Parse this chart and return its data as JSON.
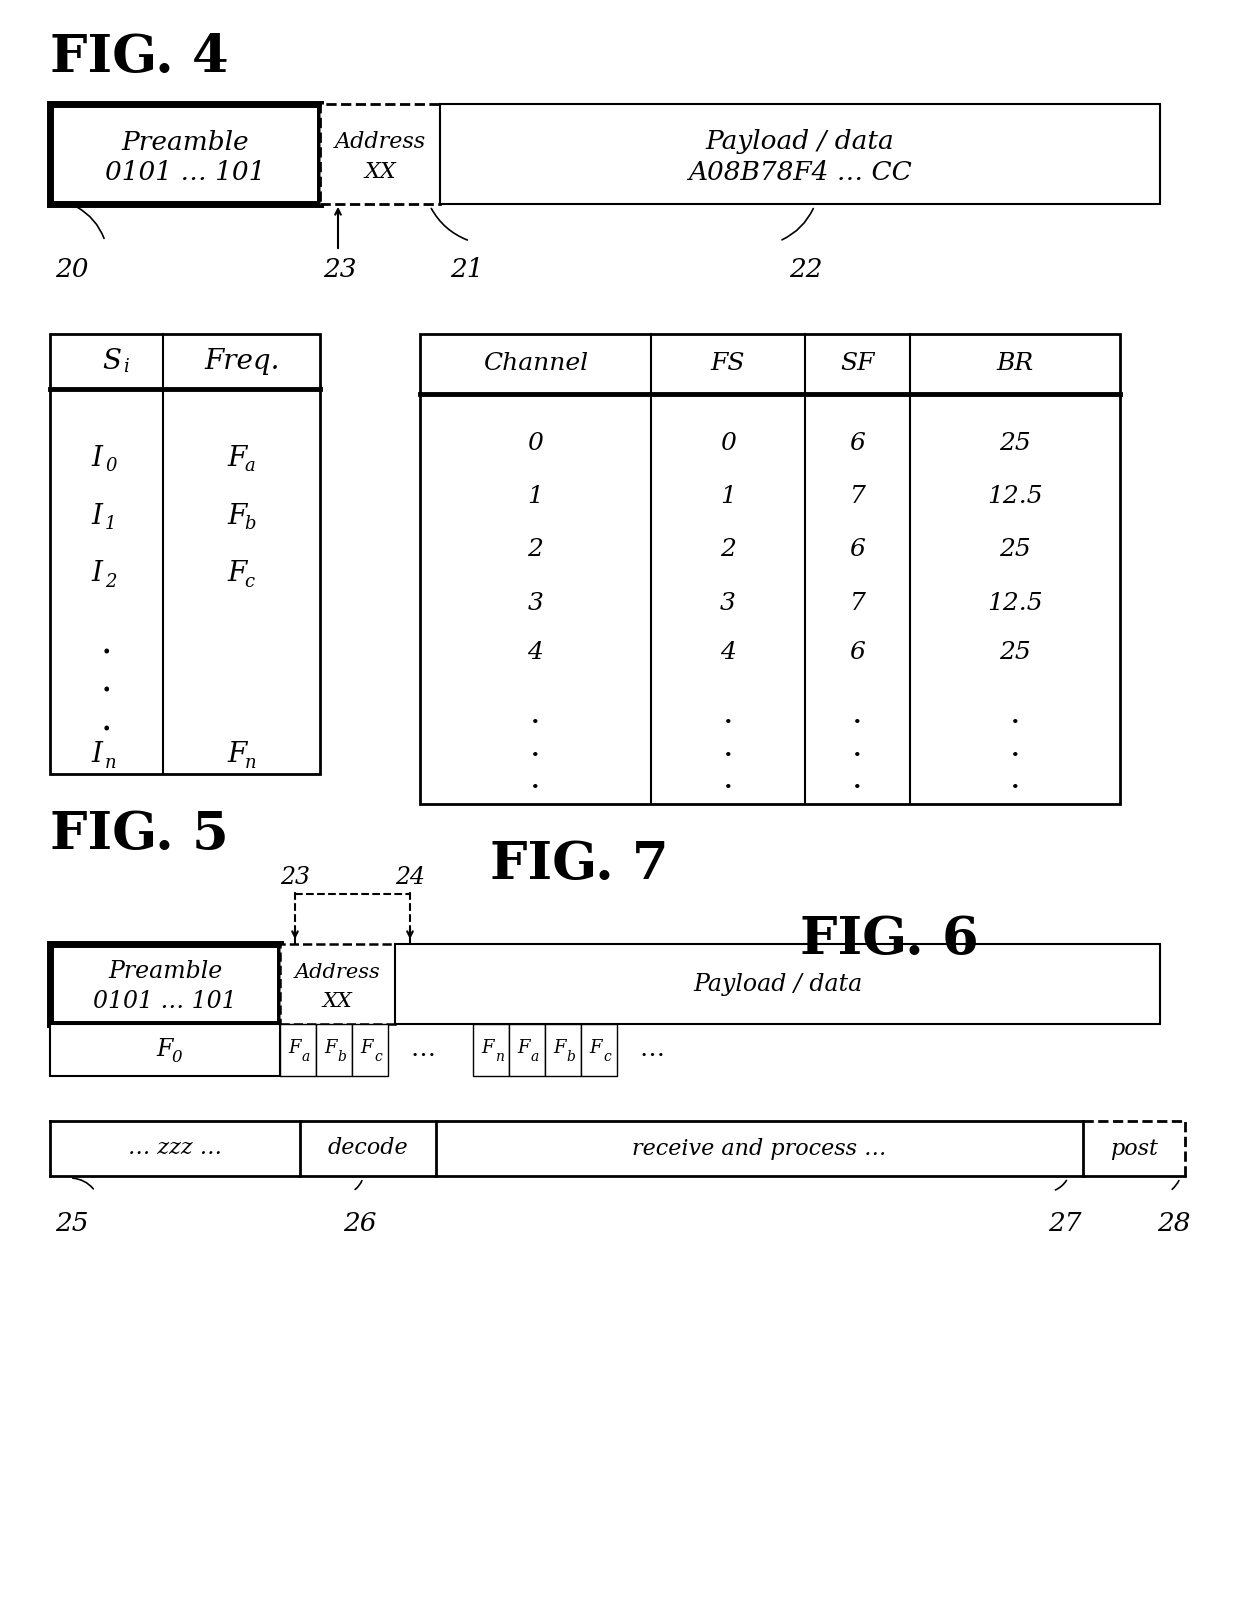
{
  "bg_color": "#ffffff",
  "fig4": {
    "title": "FIG. 4",
    "preamble_text1": "Preamble",
    "preamble_text2": "0101 … 101",
    "address_text1": "Address",
    "address_text2": "XX",
    "payload_text1": "Payload / data",
    "payload_text2": "A08B78F4 … CC",
    "labels": [
      "20",
      "23",
      "21",
      "22"
    ]
  },
  "fig5": {
    "title": "FIG. 5",
    "header_left": "S",
    "header_right": "Freq.",
    "rows_left": [
      "I",
      "I",
      "I"
    ],
    "rows_left_sub": [
      "0",
      "1",
      "2"
    ],
    "rows_right": [
      "F",
      "F",
      "F"
    ],
    "rows_right_sub": [
      "a",
      "b",
      "c"
    ],
    "last_left": "I",
    "last_left_sub": "n",
    "last_right": "F",
    "last_right_sub": "n"
  },
  "fig7": {
    "title": "FIG. 7",
    "headers": [
      "Channel",
      "FS",
      "SF",
      "BR"
    ],
    "rows": [
      [
        "0",
        "0",
        "6",
        "25"
      ],
      [
        "1",
        "1",
        "7",
        "12.5"
      ],
      [
        "2",
        "2",
        "6",
        "25"
      ],
      [
        "3",
        "3",
        "7",
        "12.5"
      ],
      [
        "4",
        "4",
        "6",
        "25"
      ]
    ]
  },
  "fig6": {
    "title": "FIG. 6",
    "labels_top": [
      "23",
      "24"
    ],
    "preamble_text1": "Preamble",
    "preamble_text2": "0101 … 101",
    "address_text1": "Address",
    "address_text2": "XX",
    "payload_text": "Payload / data",
    "timeline": [
      "… zzz …",
      "decode",
      "receive and process …",
      "post"
    ],
    "timeline_labels": [
      "25",
      "26",
      "27",
      "28"
    ]
  }
}
